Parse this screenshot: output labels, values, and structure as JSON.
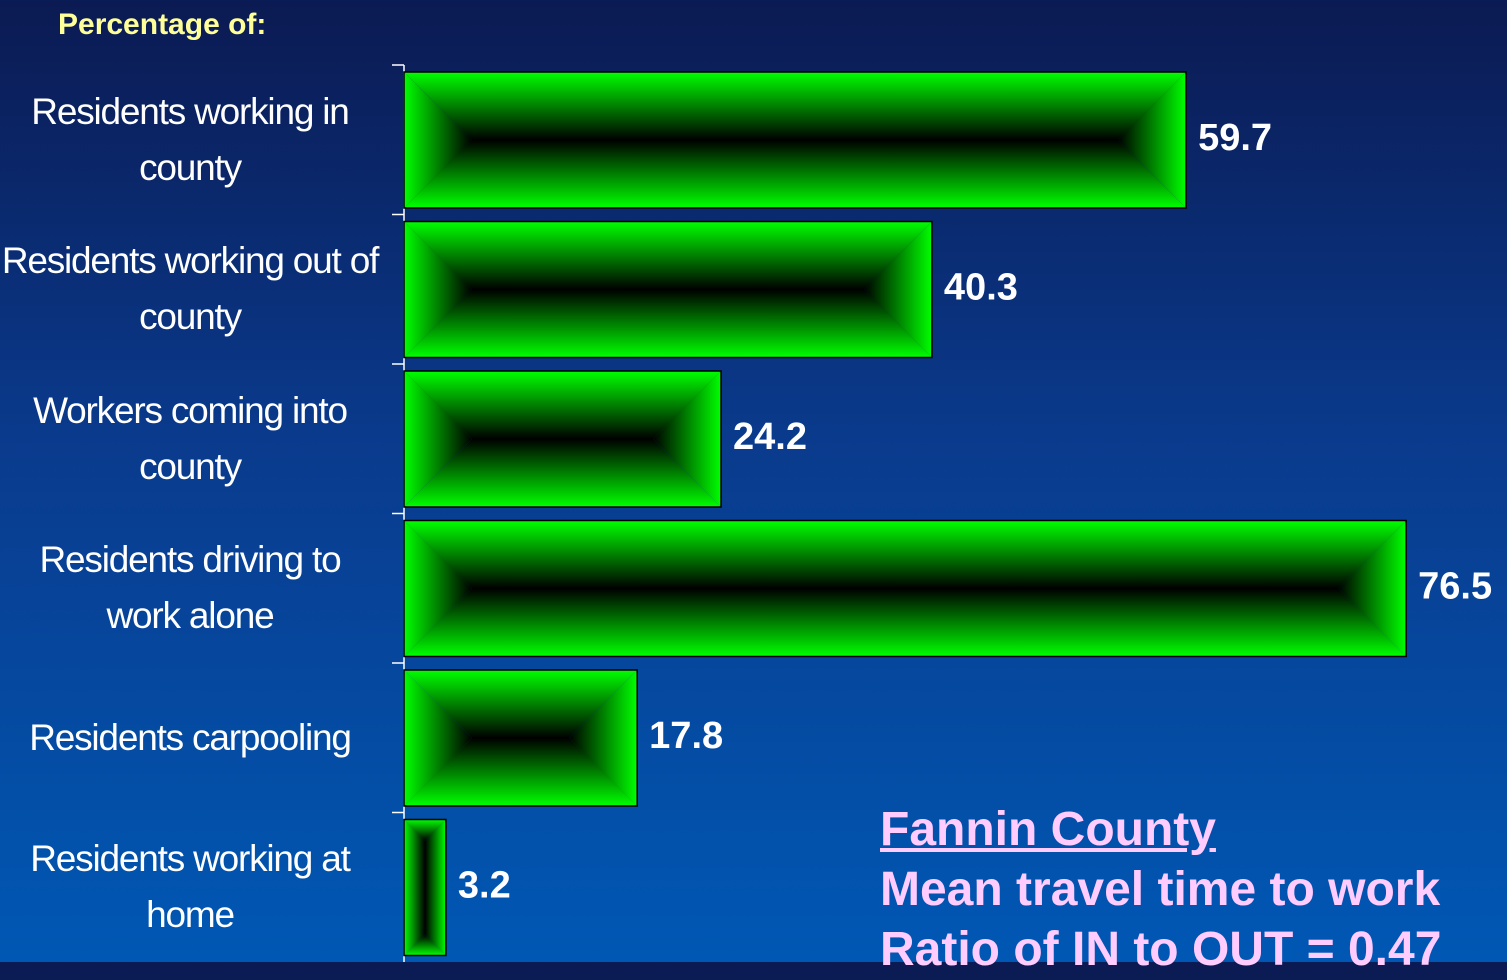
{
  "chart_data": {
    "type": "bar",
    "orientation": "horizontal",
    "title": "Percentage of:",
    "categories": [
      "Residents working in county",
      "Residents working out of county",
      "Workers coming into county",
      "Residents driving to work alone",
      "Residents carpooling",
      "Residents working at home"
    ],
    "values": [
      59.7,
      40.3,
      24.2,
      76.5,
      17.8,
      3.2
    ],
    "color": "#00ff00",
    "annotations": [
      "Fannin County",
      "Mean travel time to work",
      "Ratio of IN to OUT = 0.47"
    ]
  }
}
